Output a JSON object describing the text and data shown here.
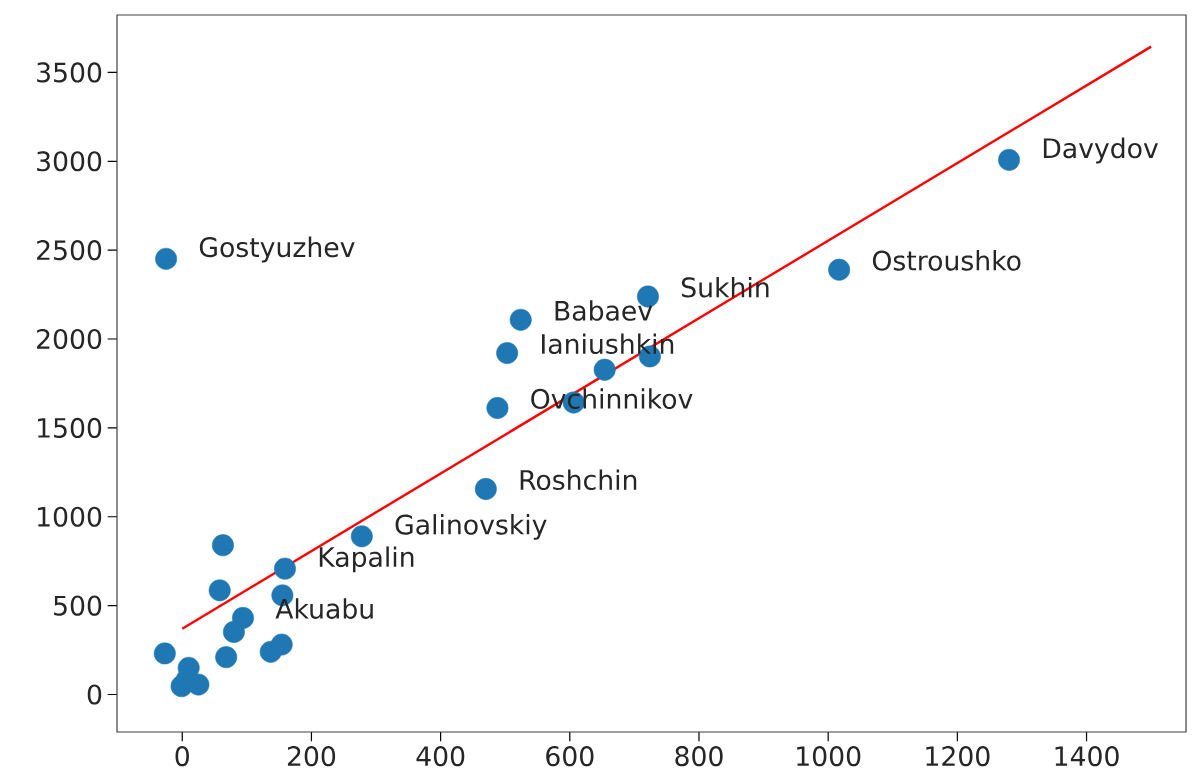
{
  "chart_data": {
    "type": "scatter",
    "xlim": [
      -101,
      1554
    ],
    "ylim": [
      -211,
      3823
    ],
    "xticks": [
      0,
      200,
      400,
      600,
      800,
      1000,
      1200,
      1400
    ],
    "yticks": [
      0,
      500,
      1000,
      1500,
      2000,
      2500,
      3000,
      3500
    ],
    "series": [
      {
        "marker": "circle",
        "color": "#1f77b4",
        "x": [
          -25,
          1280,
          1017,
          721,
          524,
          503,
          724,
          654,
          488,
          606,
          470,
          278,
          63,
          159,
          58,
          155,
          94,
          80,
          -27,
          68,
          137,
          154,
          10,
          -1,
          15,
          25,
          7
        ],
        "values": [
          2451,
          3008,
          2390,
          2239,
          2108,
          1921,
          1902,
          1827,
          1612,
          1643,
          1156,
          890,
          840,
          708,
          586,
          558,
          431,
          352,
          231,
          210,
          240,
          281,
          150,
          47,
          null,
          56,
          84
        ]
      },
      {
        "type": "line",
        "marker": "none",
        "line_style": "solid",
        "color": "#ff0000",
        "x": [
          0,
          1500
        ],
        "values": [
          370,
          3645
        ]
      }
    ],
    "annotations": [
      {
        "text": "Gostyuzhev",
        "x": -25,
        "y": 2451
      },
      {
        "text": "Davydov",
        "x": 1280,
        "y": 3008
      },
      {
        "text": "Ostroushko",
        "x": 1017,
        "y": 2390
      },
      {
        "text": "Sukhin",
        "x": 721,
        "y": 2239
      },
      {
        "text": "Babaev",
        "x": 524,
        "y": 2108
      },
      {
        "text": "Ianiushkin",
        "x": 503,
        "y": 1921
      },
      {
        "text": "Ovchinnikov",
        "x": 488,
        "y": 1612
      },
      {
        "text": "Roshchin",
        "x": 470,
        "y": 1156
      },
      {
        "text": "Galinovskiy",
        "x": 278,
        "y": 890
      },
      {
        "text": "Kapalin",
        "x": 159,
        "y": 708
      },
      {
        "text": "Akuabu",
        "x": 94,
        "y": 431
      }
    ]
  }
}
